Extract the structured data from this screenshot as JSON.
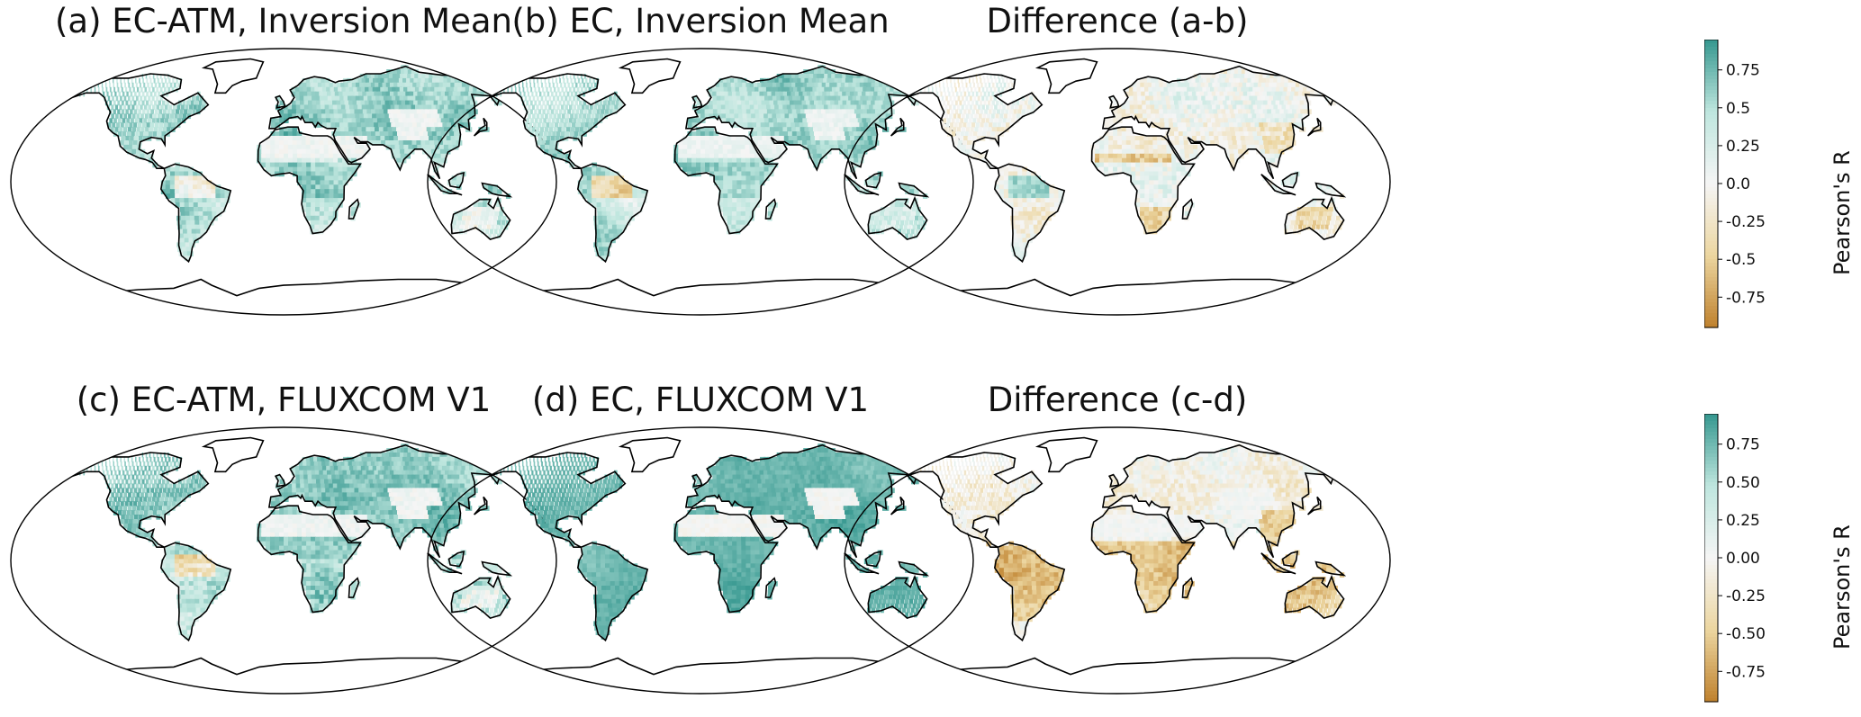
{
  "figure": {
    "rows": [
      {
        "panels": [
          {
            "id": "a",
            "title": "(a) EC-ATM, Inversion Mean",
            "kind": "ec-atm-inv"
          },
          {
            "id": "b",
            "title": "(b) EC, Inversion Mean",
            "kind": "ec-inv"
          },
          {
            "id": "ab",
            "title": "Difference (a-b)",
            "kind": "diff-ab"
          }
        ],
        "colorbar": {
          "label": "Pearson's R",
          "ticks": [
            "0.75",
            "0.5",
            "0.25",
            "0.0",
            "-0.25",
            "-0.5",
            "-0.75"
          ],
          "tick_values": [
            0.75,
            0.5,
            0.25,
            0.0,
            -0.25,
            -0.5,
            -0.75
          ],
          "range": [
            -0.95,
            0.95
          ]
        }
      },
      {
        "panels": [
          {
            "id": "c",
            "title": "(c) EC-ATM, FLUXCOM V1",
            "kind": "ec-atm-flux"
          },
          {
            "id": "d",
            "title": "(d) EC, FLUXCOM V1",
            "kind": "ec-flux"
          },
          {
            "id": "cd",
            "title": "Difference (c-d)",
            "kind": "diff-cd"
          }
        ],
        "colorbar": {
          "label": "Pearson's R",
          "ticks": [
            "0.75",
            "0.50",
            "0.25",
            "0.00",
            "-0.25",
            "-0.50",
            "-0.75"
          ],
          "tick_values": [
            0.75,
            0.5,
            0.25,
            0.0,
            -0.25,
            -0.5,
            -0.75
          ],
          "range": [
            -0.95,
            0.95
          ]
        }
      }
    ],
    "colors": {
      "positive": "#35978f",
      "neutral": "#f5f5f5",
      "negative": "#bf812d",
      "coastline": "#000000"
    }
  }
}
